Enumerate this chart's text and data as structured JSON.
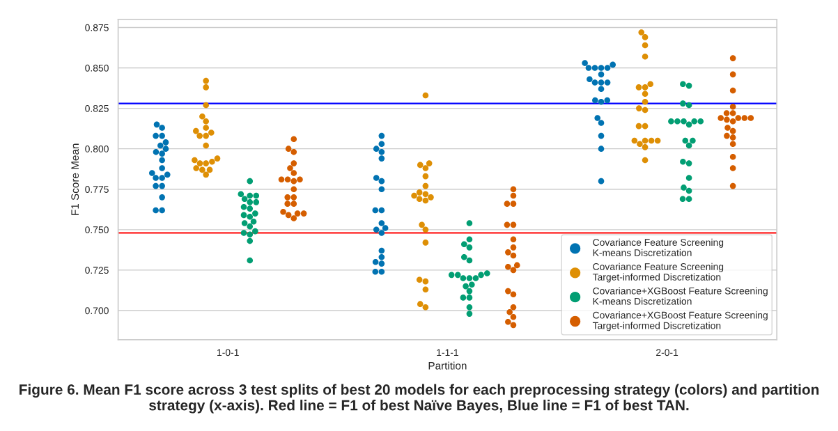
{
  "chart_data": {
    "type": "scatter",
    "xlabel": "Partition",
    "ylabel": "F1 Score Mean",
    "categories": [
      "1-0-1",
      "1-1-1",
      "2-0-1"
    ],
    "series": [
      {
        "name": "Covariance Feature Screening\nK-means Discretization",
        "color": "#0173b2",
        "x": [
          "1-0-1",
          "1-0-1",
          "1-0-1",
          "1-0-1",
          "1-0-1",
          "1-0-1",
          "1-0-1",
          "1-0-1",
          "1-0-1",
          "1-0-1",
          "1-0-1",
          "1-0-1",
          "1-0-1",
          "1-0-1",
          "1-0-1",
          "1-0-1",
          "1-0-1",
          "1-0-1",
          "1-0-1",
          "1-0-1",
          "1-1-1",
          "1-1-1",
          "1-1-1",
          "1-1-1",
          "1-1-1",
          "1-1-1",
          "1-1-1",
          "1-1-1",
          "1-1-1",
          "1-1-1",
          "1-1-1",
          "1-1-1",
          "1-1-1",
          "1-1-1",
          "1-1-1",
          "1-1-1",
          "1-1-1",
          "1-1-1",
          "1-1-1",
          "1-1-1",
          "2-0-1",
          "2-0-1",
          "2-0-1",
          "2-0-1",
          "2-0-1",
          "2-0-1",
          "2-0-1",
          "2-0-1",
          "2-0-1",
          "2-0-1",
          "2-0-1",
          "2-0-1",
          "2-0-1",
          "2-0-1",
          "2-0-1",
          "2-0-1",
          "2-0-1",
          "2-0-1",
          "2-0-1",
          "2-0-1"
        ],
        "values": [
          0.815,
          0.813,
          0.808,
          0.808,
          0.804,
          0.802,
          0.8,
          0.798,
          0.797,
          0.793,
          0.788,
          0.785,
          0.784,
          0.782,
          0.782,
          0.777,
          0.777,
          0.77,
          0.762,
          0.762,
          0.808,
          0.803,
          0.8,
          0.798,
          0.794,
          0.782,
          0.78,
          0.775,
          0.762,
          0.762,
          0.754,
          0.751,
          0.75,
          0.748,
          0.737,
          0.733,
          0.73,
          0.729,
          0.724,
          0.724,
          0.853,
          0.852,
          0.85,
          0.85,
          0.85,
          0.85,
          0.846,
          0.843,
          0.841,
          0.841,
          0.841,
          0.837,
          0.83,
          0.83,
          0.829,
          0.819,
          0.816,
          0.808,
          0.8,
          0.78
        ]
      },
      {
        "name": "Covariance Feature Screening\nTarget-informed Discretization",
        "color": "#de8f05",
        "x": [
          "1-0-1",
          "1-0-1",
          "1-0-1",
          "1-0-1",
          "1-0-1",
          "1-0-1",
          "1-0-1",
          "1-0-1",
          "1-0-1",
          "1-0-1",
          "1-0-1",
          "1-0-1",
          "1-0-1",
          "1-0-1",
          "1-0-1",
          "1-0-1",
          "1-0-1",
          "1-0-1",
          "1-0-1",
          "1-0-1",
          "1-1-1",
          "1-1-1",
          "1-1-1",
          "1-1-1",
          "1-1-1",
          "1-1-1",
          "1-1-1",
          "1-1-1",
          "1-1-1",
          "1-1-1",
          "1-1-1",
          "1-1-1",
          "1-1-1",
          "1-1-1",
          "1-1-1",
          "1-1-1",
          "1-1-1",
          "1-1-1",
          "1-1-1",
          "1-1-1",
          "2-0-1",
          "2-0-1",
          "2-0-1",
          "2-0-1",
          "2-0-1",
          "2-0-1",
          "2-0-1",
          "2-0-1",
          "2-0-1",
          "2-0-1",
          "2-0-1",
          "2-0-1",
          "2-0-1",
          "2-0-1",
          "2-0-1",
          "2-0-1",
          "2-0-1",
          "2-0-1",
          "2-0-1",
          "2-0-1"
        ],
        "values": [
          0.842,
          0.838,
          0.827,
          0.82,
          0.817,
          0.813,
          0.811,
          0.81,
          0.808,
          0.808,
          0.802,
          0.794,
          0.793,
          0.792,
          0.791,
          0.791,
          0.788,
          0.787,
          0.787,
          0.784,
          0.833,
          0.791,
          0.79,
          0.788,
          0.783,
          0.777,
          0.773,
          0.772,
          0.771,
          0.77,
          0.769,
          0.768,
          0.753,
          0.75,
          0.742,
          0.719,
          0.718,
          0.713,
          0.704,
          0.702,
          0.872,
          0.869,
          0.864,
          0.857,
          0.84,
          0.838,
          0.838,
          0.834,
          0.829,
          0.825,
          0.824,
          0.814,
          0.814,
          0.805,
          0.805,
          0.805,
          0.805,
          0.803,
          0.801,
          0.793
        ]
      },
      {
        "name": "Covariance+XGBoost Feature Screening\nK-means Discretization",
        "color": "#029e73",
        "x": [
          "1-0-1",
          "1-0-1",
          "1-0-1",
          "1-0-1",
          "1-0-1",
          "1-0-1",
          "1-0-1",
          "1-0-1",
          "1-0-1",
          "1-0-1",
          "1-0-1",
          "1-0-1",
          "1-0-1",
          "1-0-1",
          "1-0-1",
          "1-0-1",
          "1-0-1",
          "1-0-1",
          "1-0-1",
          "1-0-1",
          "1-1-1",
          "1-1-1",
          "1-1-1",
          "1-1-1",
          "1-1-1",
          "1-1-1",
          "1-1-1",
          "1-1-1",
          "1-1-1",
          "1-1-1",
          "1-1-1",
          "1-1-1",
          "1-1-1",
          "1-1-1",
          "1-1-1",
          "1-1-1",
          "1-1-1",
          "1-1-1",
          "1-1-1",
          "1-1-1",
          "2-0-1",
          "2-0-1",
          "2-0-1",
          "2-0-1",
          "2-0-1",
          "2-0-1",
          "2-0-1",
          "2-0-1",
          "2-0-1",
          "2-0-1",
          "2-0-1",
          "2-0-1",
          "2-0-1",
          "2-0-1",
          "2-0-1",
          "2-0-1",
          "2-0-1",
          "2-0-1",
          "2-0-1",
          "2-0-1"
        ],
        "values": [
          0.78,
          0.772,
          0.771,
          0.771,
          0.769,
          0.767,
          0.767,
          0.764,
          0.763,
          0.76,
          0.759,
          0.758,
          0.755,
          0.754,
          0.752,
          0.749,
          0.748,
          0.747,
          0.743,
          0.731,
          0.754,
          0.744,
          0.741,
          0.739,
          0.733,
          0.731,
          0.723,
          0.722,
          0.722,
          0.722,
          0.72,
          0.72,
          0.72,
          0.715,
          0.716,
          0.712,
          0.708,
          0.708,
          0.702,
          0.698,
          0.84,
          0.839,
          0.828,
          0.827,
          0.817,
          0.817,
          0.817,
          0.817,
          0.817,
          0.815,
          0.805,
          0.805,
          0.802,
          0.792,
          0.791,
          0.782,
          0.776,
          0.774,
          0.769,
          0.769
        ]
      },
      {
        "name": "Covariance+XGBoost Feature Screening\nTarget-informed Discretization",
        "color": "#d55e00",
        "x": [
          "1-0-1",
          "1-0-1",
          "1-0-1",
          "1-0-1",
          "1-0-1",
          "1-0-1",
          "1-0-1",
          "1-0-1",
          "1-0-1",
          "1-0-1",
          "1-0-1",
          "1-0-1",
          "1-0-1",
          "1-0-1",
          "1-0-1",
          "1-0-1",
          "1-0-1",
          "1-0-1",
          "1-0-1",
          "1-0-1",
          "1-1-1",
          "1-1-1",
          "1-1-1",
          "1-1-1",
          "1-1-1",
          "1-1-1",
          "1-1-1",
          "1-1-1",
          "1-1-1",
          "1-1-1",
          "1-1-1",
          "1-1-1",
          "1-1-1",
          "1-1-1",
          "1-1-1",
          "1-1-1",
          "1-1-1",
          "1-1-1",
          "1-1-1",
          "1-1-1",
          "2-0-1",
          "2-0-1",
          "2-0-1",
          "2-0-1",
          "2-0-1",
          "2-0-1",
          "2-0-1",
          "2-0-1",
          "2-0-1",
          "2-0-1",
          "2-0-1",
          "2-0-1",
          "2-0-1",
          "2-0-1",
          "2-0-1",
          "2-0-1",
          "2-0-1",
          "2-0-1",
          "2-0-1",
          "2-0-1"
        ],
        "values": [
          0.806,
          0.8,
          0.798,
          0.791,
          0.788,
          0.785,
          0.781,
          0.781,
          0.781,
          0.78,
          0.775,
          0.77,
          0.77,
          0.766,
          0.766,
          0.761,
          0.76,
          0.76,
          0.759,
          0.757,
          0.775,
          0.771,
          0.766,
          0.766,
          0.753,
          0.753,
          0.744,
          0.739,
          0.736,
          0.734,
          0.728,
          0.727,
          0.725,
          0.712,
          0.71,
          0.702,
          0.699,
          0.696,
          0.693,
          0.691,
          0.856,
          0.846,
          0.836,
          0.826,
          0.822,
          0.822,
          0.819,
          0.819,
          0.819,
          0.819,
          0.818,
          0.817,
          0.813,
          0.811,
          0.808,
          0.807,
          0.803,
          0.795,
          0.788,
          0.777
        ]
      }
    ],
    "ylim": [
      0.682,
      0.88
    ],
    "yticks": [
      {
        "value": 0.7,
        "label": "0.700"
      },
      {
        "value": 0.725,
        "label": "0.725"
      },
      {
        "value": 0.75,
        "label": "0.750"
      },
      {
        "value": 0.775,
        "label": "0.775"
      },
      {
        "value": 0.8,
        "label": "0.800"
      },
      {
        "value": 0.825,
        "label": "0.825"
      },
      {
        "value": 0.85,
        "label": "0.850"
      },
      {
        "value": 0.875,
        "label": "0.875"
      }
    ],
    "ref_lines": [
      {
        "axis": "y",
        "value": 0.828,
        "color": "#0000ff"
      },
      {
        "axis": "y",
        "value": 0.748,
        "color": "#ff0000"
      }
    ],
    "grid": "y",
    "legend": "bottom right",
    "marker": "circle",
    "annotations": [
      "Figure 6. Mean F1 score across 3 test splits of best 20 models for each preprocessing strategy (colors) and partition strategy (x-axis). Red line = F1 of best Naïve Bayes, Blue line = F1 of best TAN."
    ]
  }
}
